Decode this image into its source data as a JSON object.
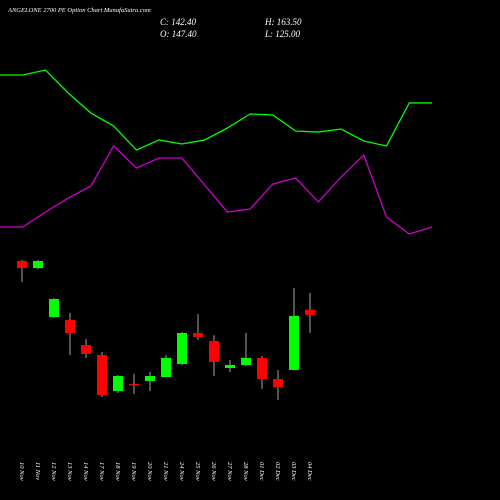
{
  "chart_data": {
    "type": "candlestick",
    "title": "ANGELONE 2700  PE Option  Chart MunafaSutra.com",
    "stats": [
      "C: 142.40",
      "H: 163.50",
      "O: 147.40",
      "L: 125.00"
    ],
    "categories": [
      "10 Nov",
      "11 Nov",
      "12 Nov",
      "13 Nov",
      "14 Nov",
      "17 Nov",
      "18 Nov",
      "19 Nov",
      "20 Nov",
      "21 Nov",
      "24 Nov",
      "25 Nov",
      "26 Nov",
      "27 Nov",
      "28 Nov",
      "01 Dec",
      "02 Dec",
      "03 Dec",
      "04 Dec"
    ],
    "open": [
      194.3,
      187.5,
      140.4,
      137.5,
      113.4,
      103.8,
      69.2,
      76.0,
      78.8,
      82.6,
      95.2,
      125.0,
      117.3,
      91.3,
      94.2,
      101.0,
      80.7,
      89.4,
      147.4
    ],
    "high": [
      195.3,
      195.3,
      158.7,
      144.2,
      119.2,
      106.7,
      84.6,
      85.6,
      87.5,
      103.8,
      126.0,
      143.3,
      123.0,
      99.0,
      125.0,
      102.8,
      89.4,
      168.3,
      163.5
    ],
    "low": [
      174.1,
      186.5,
      139.4,
      103.8,
      100.9,
      63.4,
      67.2,
      66.3,
      69.2,
      82.6,
      94.2,
      118.2,
      83.6,
      87.5,
      93.2,
      71.1,
      60.5,
      89.4,
      125.0
    ],
    "close": [
      187.5,
      194.3,
      157.7,
      125.0,
      104.8,
      65.3,
      83.6,
      75.0,
      83.6,
      101.0,
      125.0,
      121.1,
      97.1,
      94.2,
      101.0,
      80.7,
      73.0,
      141.4,
      142.4
    ],
    "up_color": "#00ff00",
    "down_color": "#ff0000",
    "ylim": [
      -35.75,
      445.5
    ],
    "overlays": [
      {
        "color": "#00ff00",
        "values": [
          373.3,
          373.3,
          378.1,
          356.0,
          336.7,
          324.2,
          301.1,
          310.8,
          306.9,
          310.8,
          322.3,
          335.8,
          334.8,
          319.4,
          318.4,
          321.3,
          309.8,
          305.0,
          346.4,
          346.4
        ]
      },
      {
        "color": "#cc00cc",
        "values": [
          227.0,
          227.0,
          241.4,
          254.9,
          266.5,
          305.0,
          283.8,
          293.4,
          293.4,
          267.4,
          241.4,
          244.3,
          268.4,
          274.2,
          251.1,
          275.1,
          296.3,
          236.6,
          220.3,
          227.0
        ]
      }
    ]
  }
}
